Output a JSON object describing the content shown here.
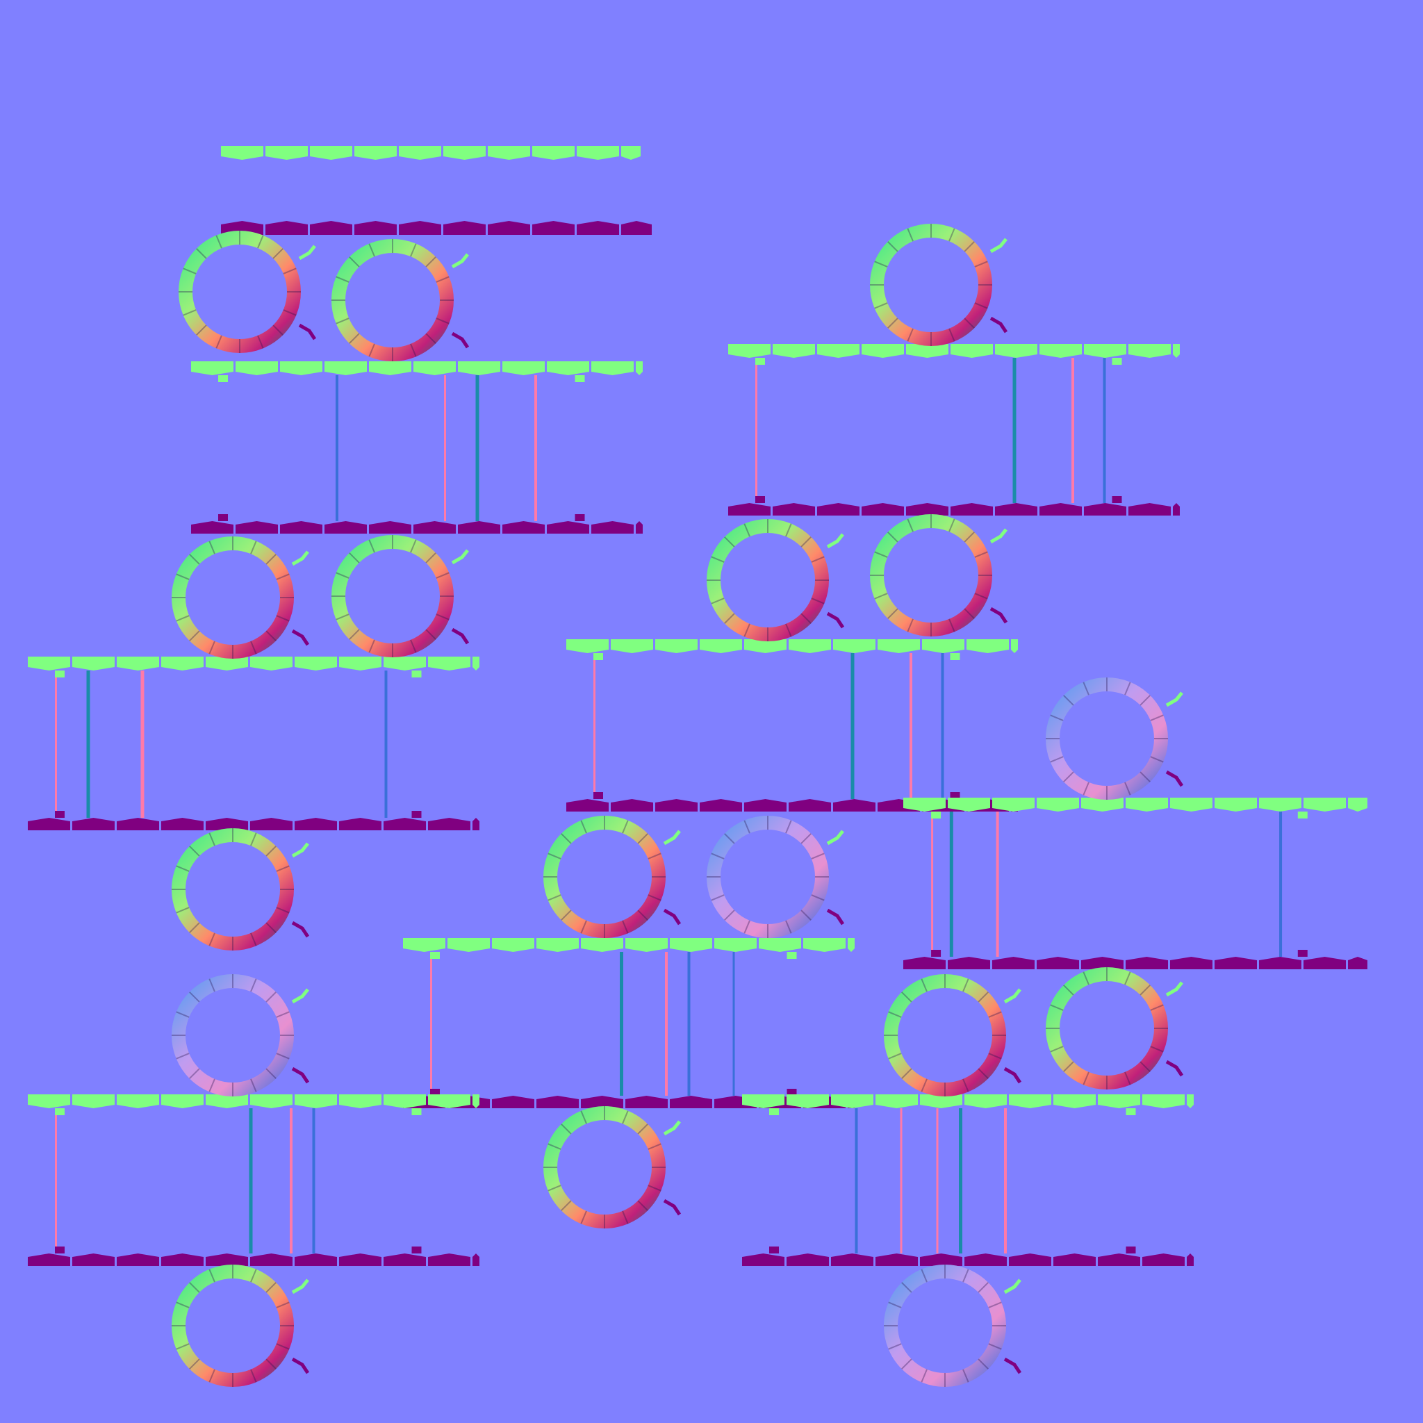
{
  "texture": {
    "kind": "normal-map",
    "colors": {
      "background": "#8080ff",
      "top_face": "#80ff80",
      "bottom_face": "#800080",
      "post_dark": "#1a8ca8",
      "post_pink": "#ff7aa8",
      "post_blue": "#3a70d8"
    }
  }
}
